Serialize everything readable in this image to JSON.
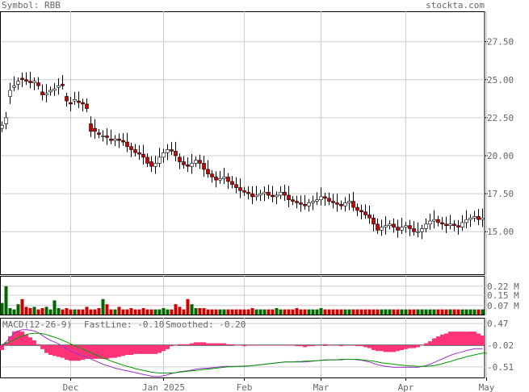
{
  "header": {
    "symbol_label": "Symbol: RBB",
    "site": "stockta.com"
  },
  "chart_data": [
    {
      "type": "candlestick",
      "ylim": [
        12.2,
        29.5
      ],
      "yticks": [
        "27.50",
        "25.00",
        "22.50",
        "20.00",
        "17.50",
        "15.00"
      ],
      "ytick_values": [
        27.5,
        25.0,
        22.5,
        20.0,
        17.5,
        15.0
      ],
      "x_ticks": [
        "Dec",
        "Jan 2025",
        "Feb",
        "Mar",
        "Apr",
        "May"
      ],
      "x_tick_index": [
        17,
        40,
        60,
        79,
        100,
        120
      ],
      "colors": {
        "up": "#ffffff",
        "down": "#cc0000",
        "grid": "#cccccc"
      },
      "close": [
        22.0,
        22.5,
        24.3,
        24.6,
        24.9,
        25.0,
        24.9,
        24.8,
        24.9,
        24.6,
        24.0,
        24.1,
        24.3,
        24.4,
        24.6,
        24.6,
        23.6,
        23.4,
        23.7,
        23.5,
        23.4,
        23.1,
        21.6,
        21.6,
        21.4,
        21.3,
        21.2,
        21.0,
        21.1,
        21.0,
        20.9,
        20.6,
        20.4,
        20.2,
        20.1,
        19.9,
        19.5,
        19.3,
        19.5,
        19.9,
        20.2,
        20.4,
        20.3,
        20.0,
        19.6,
        19.4,
        19.3,
        19.5,
        19.7,
        19.5,
        19.1,
        18.8,
        18.6,
        18.4,
        18.5,
        18.6,
        18.3,
        18.1,
        17.9,
        17.7,
        17.6,
        17.5,
        17.3,
        17.4,
        17.5,
        17.6,
        17.4,
        17.3,
        17.4,
        17.6,
        17.4,
        17.1,
        17.0,
        16.9,
        16.8,
        16.7,
        16.9,
        17.0,
        17.1,
        17.3,
        17.2,
        17.0,
        16.9,
        16.8,
        16.7,
        16.9,
        17.0,
        16.6,
        16.4,
        16.3,
        16.1,
        15.9,
        15.5,
        15.1,
        15.3,
        15.4,
        15.5,
        15.3,
        15.1,
        15.3,
        15.4,
        15.2,
        15.0,
        15.0,
        15.2,
        15.5,
        15.7,
        15.8,
        15.6,
        15.5,
        15.4,
        15.5,
        15.4,
        15.3,
        15.6,
        15.8,
        15.9,
        16.0,
        15.8,
        15.9
      ],
      "open": [
        21.8,
        22.1,
        23.9,
        24.5,
        24.7,
        25.1,
        25.0,
        24.9,
        24.8,
        24.8,
        24.2,
        24.0,
        24.2,
        24.3,
        24.5,
        24.7,
        23.9,
        23.5,
        23.6,
        23.6,
        23.5,
        23.4,
        22.1,
        21.8,
        21.5,
        21.3,
        21.3,
        21.1,
        21.0,
        21.1,
        21.0,
        20.9,
        20.6,
        20.4,
        20.2,
        20.1,
        19.9,
        19.6,
        19.3,
        19.5,
        19.9,
        20.2,
        20.4,
        20.3,
        19.9,
        19.6,
        19.4,
        19.3,
        19.5,
        19.7,
        19.5,
        19.1,
        18.8,
        18.6,
        18.4,
        18.5,
        18.6,
        18.3,
        18.1,
        17.9,
        17.7,
        17.6,
        17.5,
        17.3,
        17.4,
        17.5,
        17.6,
        17.4,
        17.3,
        17.4,
        17.6,
        17.4,
        17.1,
        17.0,
        16.9,
        16.8,
        16.7,
        16.9,
        17.0,
        17.1,
        17.3,
        17.2,
        17.0,
        16.9,
        16.8,
        16.7,
        16.9,
        17.0,
        16.6,
        16.4,
        16.3,
        16.1,
        15.9,
        15.5,
        15.1,
        15.3,
        15.4,
        15.5,
        15.3,
        15.1,
        15.3,
        15.4,
        15.2,
        15.0,
        15.0,
        15.2,
        15.5,
        15.7,
        15.8,
        15.6,
        15.5,
        15.4,
        15.5,
        15.4,
        15.3,
        15.6,
        15.8,
        15.9,
        16.0,
        15.8
      ]
    },
    {
      "type": "bar",
      "ylim": [
        0,
        0.3
      ],
      "yticks": [
        "0.22 M",
        "0.15 M",
        "0.07 M"
      ],
      "ytick_values": [
        0.22,
        0.15,
        0.07
      ],
      "colors": {
        "up": "#006600",
        "down": "#cc0000"
      },
      "values": [
        0.09,
        0.22,
        0.05,
        0.04,
        0.08,
        0.12,
        0.06,
        0.05,
        0.06,
        0.04,
        0.05,
        0.06,
        0.04,
        0.11,
        0.05,
        0.04,
        0.05,
        0.04,
        0.04,
        0.04,
        0.04,
        0.06,
        0.04,
        0.04,
        0.05,
        0.12,
        0.08,
        0.04,
        0.04,
        0.06,
        0.04,
        0.04,
        0.05,
        0.04,
        0.04,
        0.05,
        0.04,
        0.04,
        0.04,
        0.04,
        0.05,
        0.04,
        0.04,
        0.08,
        0.06,
        0.04,
        0.12,
        0.08,
        0.05,
        0.05,
        0.05,
        0.04,
        0.04,
        0.04,
        0.04,
        0.04,
        0.04,
        0.04,
        0.04,
        0.04,
        0.04,
        0.04,
        0.05,
        0.04,
        0.04,
        0.04,
        0.04,
        0.04,
        0.05,
        0.04,
        0.04,
        0.04,
        0.04,
        0.05,
        0.04,
        0.04,
        0.04,
        0.04,
        0.04,
        0.05,
        0.04,
        0.04,
        0.04,
        0.04,
        0.04,
        0.04,
        0.04,
        0.04,
        0.04,
        0.04,
        0.04,
        0.04,
        0.04,
        0.04,
        0.04,
        0.04,
        0.04,
        0.04,
        0.04,
        0.04,
        0.04,
        0.04,
        0.04,
        0.04,
        0.04,
        0.04,
        0.04,
        0.04,
        0.04,
        0.04,
        0.04,
        0.04,
        0.04,
        0.04,
        0.04,
        0.04,
        0.04,
        0.04,
        0.04,
        0.04
      ]
    },
    {
      "type": "line",
      "ylim": [
        -0.75,
        0.6
      ],
      "yticks": [
        "0.47",
        "-0.02",
        "-0.51"
      ],
      "ytick_values": [
        0.47,
        -0.02,
        -0.51
      ],
      "legend": {
        "macd": "MACD(12-26-9)",
        "fast": "FastLine: -0.10",
        "smooth": "Smoothed: -0.20"
      },
      "colors": {
        "fast": "#9933cc",
        "smooth": "#009900",
        "hist": "#ff3377"
      },
      "fast": [
        -0.05,
        0.05,
        0.15,
        0.24,
        0.3,
        0.33,
        0.33,
        0.32,
        0.3,
        0.26,
        0.2,
        0.14,
        0.09,
        0.05,
        0.01,
        -0.04,
        -0.1,
        -0.15,
        -0.19,
        -0.23,
        -0.26,
        -0.29,
        -0.33,
        -0.37,
        -0.41,
        -0.45,
        -0.48,
        -0.51,
        -0.54,
        -0.56,
        -0.58,
        -0.6,
        -0.62,
        -0.64,
        -0.66,
        -0.68,
        -0.7,
        -0.72,
        -0.73,
        -0.73,
        -0.71,
        -0.69,
        -0.66,
        -0.64,
        -0.62,
        -0.61,
        -0.6,
        -0.58,
        -0.56,
        -0.55,
        -0.54,
        -0.54,
        -0.53,
        -0.52,
        -0.51,
        -0.5,
        -0.5,
        -0.5,
        -0.5,
        -0.5,
        -0.5,
        -0.49,
        -0.48,
        -0.47,
        -0.46,
        -0.45,
        -0.44,
        -0.43,
        -0.42,
        -0.41,
        -0.4,
        -0.4,
        -0.4,
        -0.4,
        -0.4,
        -0.4,
        -0.39,
        -0.38,
        -0.37,
        -0.36,
        -0.35,
        -0.35,
        -0.35,
        -0.35,
        -0.35,
        -0.34,
        -0.34,
        -0.34,
        -0.35,
        -0.36,
        -0.38,
        -0.4,
        -0.43,
        -0.46,
        -0.48,
        -0.5,
        -0.51,
        -0.52,
        -0.52,
        -0.52,
        -0.52,
        -0.52,
        -0.52,
        -0.52,
        -0.5,
        -0.48,
        -0.45,
        -0.41,
        -0.37,
        -0.33,
        -0.29,
        -0.25,
        -0.22,
        -0.19,
        -0.17,
        -0.14,
        -0.12,
        -0.1,
        -0.1,
        -0.1
      ],
      "smooth": [
        0.0,
        0.02,
        0.06,
        0.1,
        0.15,
        0.19,
        0.22,
        0.24,
        0.25,
        0.25,
        0.24,
        0.22,
        0.19,
        0.16,
        0.13,
        0.09,
        0.05,
        0.01,
        -0.03,
        -0.07,
        -0.11,
        -0.15,
        -0.19,
        -0.23,
        -0.27,
        -0.31,
        -0.34,
        -0.38,
        -0.41,
        -0.44,
        -0.47,
        -0.5,
        -0.52,
        -0.55,
        -0.57,
        -0.59,
        -0.61,
        -0.63,
        -0.64,
        -0.65,
        -0.65,
        -0.65,
        -0.65,
        -0.64,
        -0.63,
        -0.62,
        -0.61,
        -0.6,
        -0.59,
        -0.58,
        -0.57,
        -0.56,
        -0.55,
        -0.54,
        -0.53,
        -0.52,
        -0.51,
        -0.51,
        -0.5,
        -0.5,
        -0.49,
        -0.49,
        -0.48,
        -0.47,
        -0.46,
        -0.45,
        -0.44,
        -0.43,
        -0.42,
        -0.41,
        -0.4,
        -0.4,
        -0.4,
        -0.39,
        -0.39,
        -0.38,
        -0.38,
        -0.37,
        -0.37,
        -0.36,
        -0.36,
        -0.35,
        -0.35,
        -0.35,
        -0.34,
        -0.34,
        -0.34,
        -0.34,
        -0.34,
        -0.35,
        -0.36,
        -0.37,
        -0.38,
        -0.4,
        -0.42,
        -0.43,
        -0.44,
        -0.45,
        -0.46,
        -0.47,
        -0.48,
        -0.49,
        -0.49,
        -0.5,
        -0.5,
        -0.5,
        -0.49,
        -0.48,
        -0.46,
        -0.44,
        -0.41,
        -0.39,
        -0.36,
        -0.33,
        -0.31,
        -0.28,
        -0.26,
        -0.24,
        -0.22,
        -0.2,
        -0.2
      ]
    }
  ]
}
